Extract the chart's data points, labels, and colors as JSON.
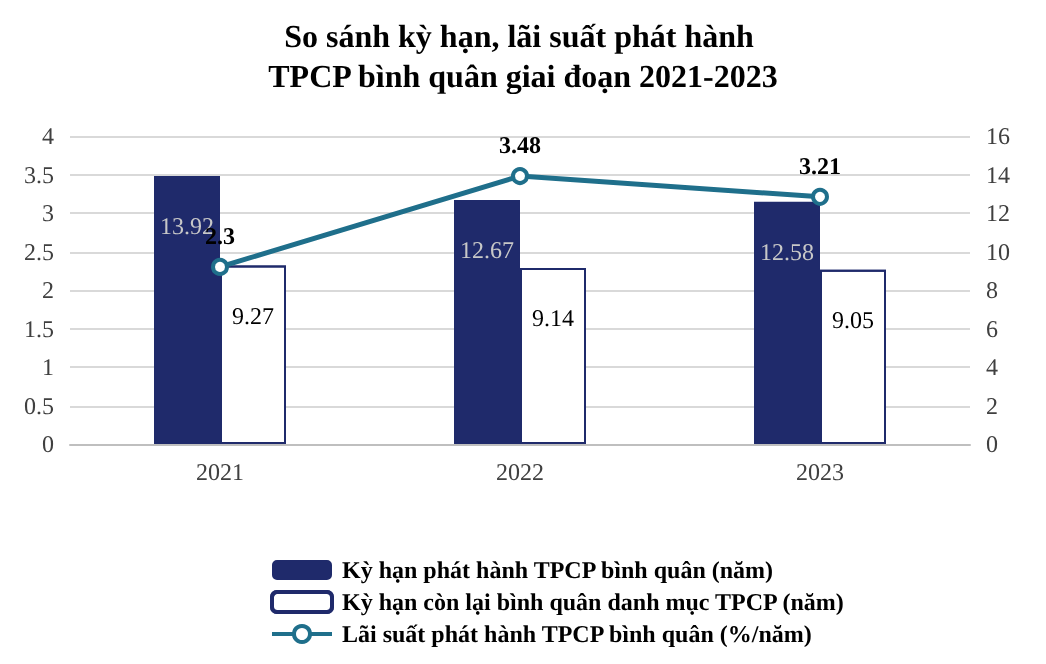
{
  "chart_data": {
    "type": "bar",
    "title": "So sánh kỳ hạn, lãi suất phát hành TPCP bình quân giai đoạn 2021-2023",
    "categories": [
      "2021",
      "2022",
      "2023"
    ],
    "series": [
      {
        "name": "Kỳ hạn phát hành TPCP bình quân (năm)",
        "axis": "y2",
        "color": "#1f2a6b",
        "values": [
          13.92,
          12.67,
          12.58
        ]
      },
      {
        "name": "Kỳ hạn còn lại bình quân danh mục TPCP (năm)",
        "axis": "y2",
        "color": "#ffffff",
        "values": [
          9.27,
          9.14,
          9.05
        ]
      },
      {
        "name": "Lãi suất phát hành TPCP bình quân (%/năm)",
        "type": "line",
        "color": "#1f6f8b",
        "values": [
          2.3,
          3.48,
          3.21
        ]
      }
    ],
    "ylim": [
      0,
      4
    ],
    "yticks": [
      0,
      0.5,
      1,
      1.5,
      2,
      2.5,
      3,
      3.5,
      4
    ],
    "y2lim": [
      0,
      16
    ],
    "y2ticks": [
      0,
      2,
      4,
      6,
      8,
      10,
      12,
      14,
      16
    ],
    "grid": "y",
    "legend": "bottom",
    "marker": "circle",
    "data_labels": true
  }
}
